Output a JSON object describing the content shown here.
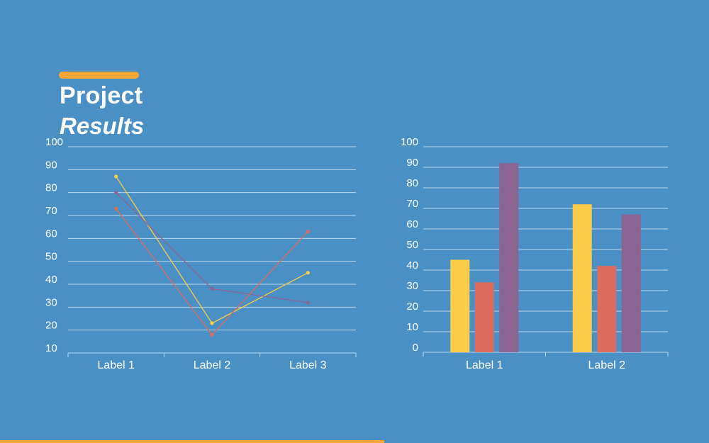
{
  "heading": {
    "line1": "Project",
    "line2": "Results"
  },
  "colors": {
    "background": "#4a90c5",
    "accent": "#f7a737",
    "yellow": "#f9cc4a",
    "red": "#dd6b5d",
    "purple": "#8c6493",
    "grid": "#b9d6ec"
  },
  "chart_data": [
    {
      "type": "line",
      "categories": [
        "Label 1",
        "Label 2",
        "Label 3"
      ],
      "yticks": [
        10,
        20,
        30,
        40,
        50,
        60,
        70,
        80,
        90,
        100
      ],
      "ylim": [
        10,
        100
      ],
      "grid": true,
      "series": [
        {
          "color": "#f9cc4a",
          "values": [
            87,
            23,
            45
          ]
        },
        {
          "color": "#8c6493",
          "values": [
            80,
            38,
            32
          ]
        },
        {
          "color": "#dd6b5d",
          "values": [
            73,
            18,
            63
          ]
        }
      ]
    },
    {
      "type": "bar",
      "categories": [
        "Label 1",
        "Label 2"
      ],
      "yticks": [
        0,
        10,
        20,
        30,
        40,
        50,
        60,
        70,
        80,
        90,
        100
      ],
      "ylim": [
        0,
        100
      ],
      "grid": true,
      "series": [
        {
          "color": "#f9cc4a",
          "values": [
            45,
            72
          ]
        },
        {
          "color": "#dd6b5d",
          "values": [
            34,
            42
          ]
        },
        {
          "color": "#8c6493",
          "values": [
            92,
            67
          ]
        }
      ]
    }
  ]
}
